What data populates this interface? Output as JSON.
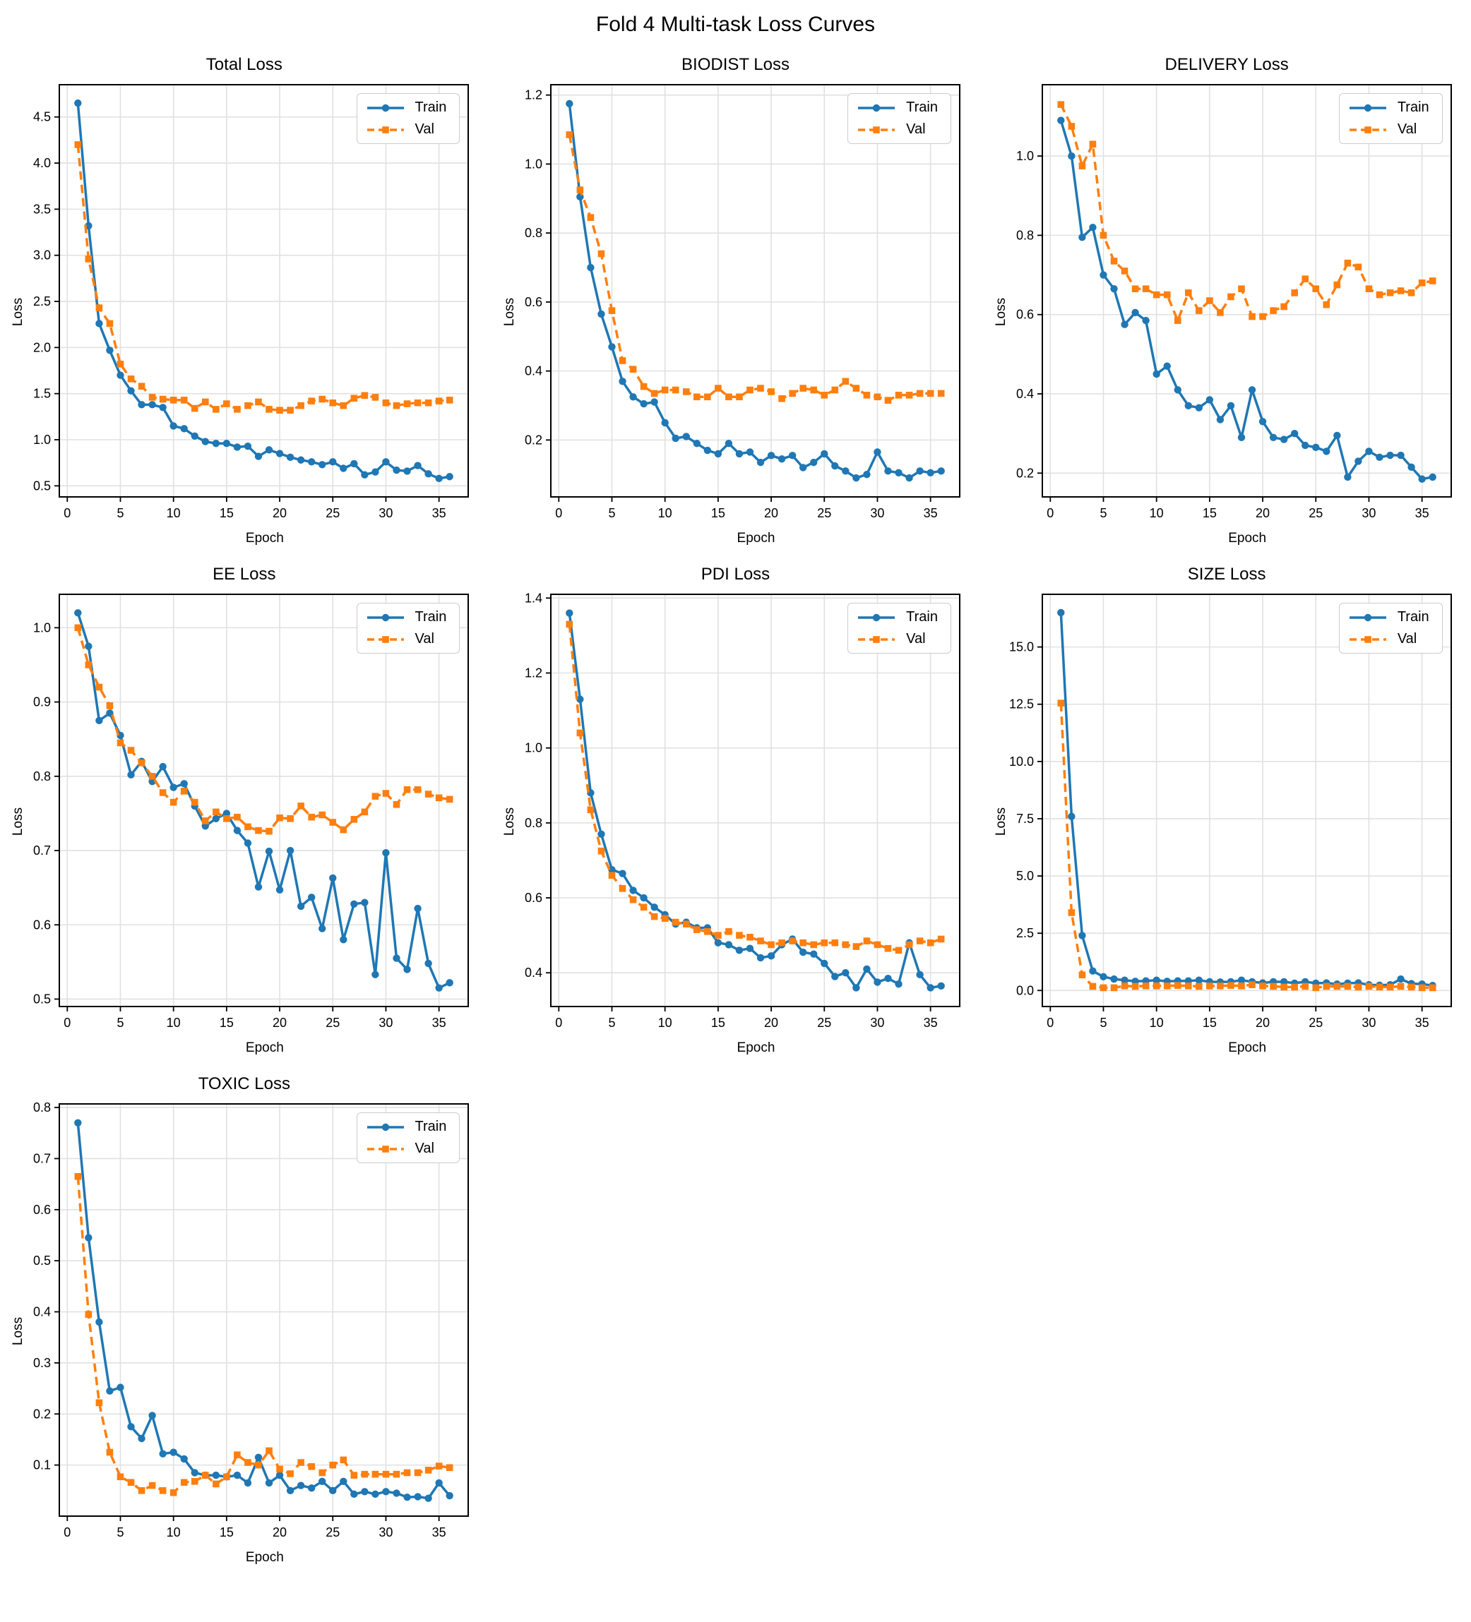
{
  "page_title": "Fold 4 Multi-task Loss Curves",
  "colors": {
    "train": "#1f77b4",
    "val": "#ff7f0e",
    "grid": "#e1e1e1",
    "spine": "#000000"
  },
  "epochs": [
    1,
    2,
    3,
    4,
    5,
    6,
    7,
    8,
    9,
    10,
    11,
    12,
    13,
    14,
    15,
    16,
    17,
    18,
    19,
    20,
    21,
    22,
    23,
    24,
    25,
    26,
    27,
    28,
    29,
    30,
    31,
    32,
    33,
    34,
    35,
    36
  ],
  "chart_data": [
    {
      "type": "line",
      "title": "Total Loss",
      "xlabel": "Epoch",
      "ylabel": "Loss",
      "xticks": [
        0,
        5,
        10,
        15,
        20,
        25,
        30,
        35
      ],
      "xlim": [
        -0.75,
        37.75
      ],
      "yticks": [
        "0.5",
        "1.0",
        "1.5",
        "2.0",
        "2.5",
        "3.0",
        "3.5",
        "4.0",
        "4.5"
      ],
      "ylim": [
        0.38,
        4.85
      ],
      "grid": true,
      "legend_position": "top-right",
      "series": [
        {
          "name": "Train",
          "color": "#1f77b4",
          "style": "solid",
          "marker": "circle",
          "values": [
            4.65,
            3.32,
            2.26,
            1.97,
            1.7,
            1.53,
            1.38,
            1.38,
            1.35,
            1.15,
            1.12,
            1.04,
            0.98,
            0.96,
            0.96,
            0.92,
            0.93,
            0.82,
            0.89,
            0.85,
            0.81,
            0.78,
            0.76,
            0.73,
            0.76,
            0.69,
            0.74,
            0.62,
            0.65,
            0.76,
            0.67,
            0.66,
            0.72,
            0.63,
            0.58,
            0.6
          ]
        },
        {
          "name": "Val",
          "color": "#ff7f0e",
          "style": "dashed",
          "marker": "square",
          "values": [
            4.2,
            2.96,
            2.43,
            2.26,
            1.82,
            1.66,
            1.58,
            1.46,
            1.44,
            1.43,
            1.43,
            1.34,
            1.41,
            1.33,
            1.39,
            1.33,
            1.37,
            1.41,
            1.33,
            1.32,
            1.32,
            1.37,
            1.42,
            1.44,
            1.4,
            1.37,
            1.45,
            1.48,
            1.46,
            1.4,
            1.37,
            1.39,
            1.4,
            1.4,
            1.42,
            1.43
          ]
        }
      ]
    },
    {
      "type": "line",
      "title": "BIODIST Loss",
      "xlabel": "Epoch",
      "ylabel": "Loss",
      "xticks": [
        0,
        5,
        10,
        15,
        20,
        25,
        30,
        35
      ],
      "xlim": [
        -0.75,
        37.75
      ],
      "yticks": [
        "0.2",
        "0.4",
        "0.6",
        "0.8",
        "1.0",
        "1.2"
      ],
      "ylim": [
        0.035,
        1.23
      ],
      "grid": true,
      "legend_position": "top-right",
      "series": [
        {
          "name": "Train",
          "color": "#1f77b4",
          "style": "solid",
          "marker": "circle",
          "values": [
            1.175,
            0.905,
            0.7,
            0.565,
            0.47,
            0.37,
            0.325,
            0.305,
            0.31,
            0.25,
            0.205,
            0.21,
            0.19,
            0.17,
            0.16,
            0.19,
            0.16,
            0.165,
            0.135,
            0.155,
            0.145,
            0.155,
            0.12,
            0.135,
            0.16,
            0.125,
            0.11,
            0.09,
            0.1,
            0.165,
            0.11,
            0.105,
            0.09,
            0.11,
            0.105,
            0.11
          ]
        },
        {
          "name": "Val",
          "color": "#ff7f0e",
          "style": "dashed",
          "marker": "square",
          "values": [
            1.085,
            0.925,
            0.845,
            0.74,
            0.575,
            0.43,
            0.405,
            0.355,
            0.335,
            0.345,
            0.345,
            0.34,
            0.325,
            0.325,
            0.35,
            0.325,
            0.325,
            0.345,
            0.35,
            0.34,
            0.32,
            0.335,
            0.35,
            0.345,
            0.33,
            0.345,
            0.37,
            0.35,
            0.33,
            0.325,
            0.315,
            0.33,
            0.33,
            0.335,
            0.335,
            0.335
          ]
        }
      ]
    },
    {
      "type": "line",
      "title": "DELIVERY Loss",
      "xlabel": "Epoch",
      "ylabel": "Loss",
      "xticks": [
        0,
        5,
        10,
        15,
        20,
        25,
        30,
        35
      ],
      "xlim": [
        -0.75,
        37.75
      ],
      "yticks": [
        "0.2",
        "0.4",
        "0.6",
        "0.8",
        "1.0"
      ],
      "ylim": [
        0.14,
        1.18
      ],
      "grid": true,
      "legend_position": "top-right",
      "series": [
        {
          "name": "Train",
          "color": "#1f77b4",
          "style": "solid",
          "marker": "circle",
          "values": [
            1.09,
            1.0,
            0.795,
            0.82,
            0.7,
            0.665,
            0.575,
            0.605,
            0.585,
            0.45,
            0.47,
            0.41,
            0.37,
            0.365,
            0.385,
            0.335,
            0.37,
            0.29,
            0.41,
            0.33,
            0.29,
            0.285,
            0.3,
            0.27,
            0.265,
            0.255,
            0.295,
            0.19,
            0.23,
            0.255,
            0.24,
            0.245,
            0.245,
            0.215,
            0.185,
            0.19
          ]
        },
        {
          "name": "Val",
          "color": "#ff7f0e",
          "style": "dashed",
          "marker": "square",
          "values": [
            1.13,
            1.075,
            0.975,
            1.03,
            0.8,
            0.735,
            0.71,
            0.665,
            0.665,
            0.65,
            0.65,
            0.585,
            0.655,
            0.61,
            0.635,
            0.605,
            0.645,
            0.665,
            0.595,
            0.595,
            0.61,
            0.62,
            0.655,
            0.69,
            0.665,
            0.625,
            0.675,
            0.73,
            0.72,
            0.665,
            0.65,
            0.655,
            0.66,
            0.655,
            0.68,
            0.685
          ]
        }
      ]
    },
    {
      "type": "line",
      "title": "EE Loss",
      "xlabel": "Epoch",
      "ylabel": "Loss",
      "xticks": [
        0,
        5,
        10,
        15,
        20,
        25,
        30,
        35
      ],
      "xlim": [
        -0.75,
        37.75
      ],
      "yticks": [
        "0.5",
        "0.6",
        "0.7",
        "0.8",
        "0.9",
        "1.0"
      ],
      "ylim": [
        0.49,
        1.045
      ],
      "grid": true,
      "legend_position": "top-right",
      "series": [
        {
          "name": "Train",
          "color": "#1f77b4",
          "style": "solid",
          "marker": "circle",
          "values": [
            1.02,
            0.975,
            0.875,
            0.885,
            0.855,
            0.802,
            0.82,
            0.793,
            0.813,
            0.785,
            0.79,
            0.76,
            0.733,
            0.743,
            0.75,
            0.727,
            0.71,
            0.651,
            0.699,
            0.647,
            0.7,
            0.625,
            0.637,
            0.595,
            0.663,
            0.58,
            0.628,
            0.63,
            0.533,
            0.697,
            0.555,
            0.54,
            0.622,
            0.548,
            0.515,
            0.522
          ]
        },
        {
          "name": "Val",
          "color": "#ff7f0e",
          "style": "dashed",
          "marker": "square",
          "values": [
            1.0,
            0.95,
            0.92,
            0.895,
            0.845,
            0.835,
            0.818,
            0.8,
            0.778,
            0.765,
            0.78,
            0.765,
            0.74,
            0.752,
            0.743,
            0.745,
            0.732,
            0.727,
            0.726,
            0.744,
            0.743,
            0.76,
            0.745,
            0.748,
            0.738,
            0.728,
            0.742,
            0.752,
            0.773,
            0.777,
            0.762,
            0.782,
            0.782,
            0.776,
            0.771,
            0.769
          ]
        }
      ]
    },
    {
      "type": "line",
      "title": "PDI Loss",
      "xlabel": "Epoch",
      "ylabel": "Loss",
      "xticks": [
        0,
        5,
        10,
        15,
        20,
        25,
        30,
        35
      ],
      "xlim": [
        -0.75,
        37.75
      ],
      "yticks": [
        "0.4",
        "0.6",
        "0.8",
        "1.0",
        "1.2",
        "1.4"
      ],
      "ylim": [
        0.31,
        1.41
      ],
      "grid": true,
      "legend_position": "top-right",
      "series": [
        {
          "name": "Train",
          "color": "#1f77b4",
          "style": "solid",
          "marker": "circle",
          "values": [
            1.36,
            1.13,
            0.88,
            0.77,
            0.675,
            0.665,
            0.62,
            0.6,
            0.575,
            0.555,
            0.53,
            0.535,
            0.52,
            0.52,
            0.48,
            0.475,
            0.46,
            0.465,
            0.44,
            0.445,
            0.475,
            0.49,
            0.455,
            0.45,
            0.425,
            0.39,
            0.4,
            0.36,
            0.41,
            0.375,
            0.385,
            0.37,
            0.48,
            0.395,
            0.36,
            0.365
          ]
        },
        {
          "name": "Val",
          "color": "#ff7f0e",
          "style": "dashed",
          "marker": "square",
          "values": [
            1.33,
            1.04,
            0.835,
            0.725,
            0.66,
            0.625,
            0.595,
            0.575,
            0.55,
            0.545,
            0.535,
            0.53,
            0.515,
            0.51,
            0.5,
            0.51,
            0.5,
            0.495,
            0.485,
            0.475,
            0.48,
            0.485,
            0.48,
            0.475,
            0.48,
            0.48,
            0.475,
            0.47,
            0.485,
            0.475,
            0.465,
            0.46,
            0.475,
            0.485,
            0.48,
            0.49
          ]
        }
      ]
    },
    {
      "type": "line",
      "title": "SIZE Loss",
      "xlabel": "Epoch",
      "ylabel": "Loss",
      "xticks": [
        0,
        5,
        10,
        15,
        20,
        25,
        30,
        35
      ],
      "xlim": [
        -0.75,
        37.75
      ],
      "yticks": [
        "0.0",
        "2.5",
        "5.0",
        "7.5",
        "10.0",
        "12.5",
        "15.0"
      ],
      "ylim": [
        -0.7,
        17.3
      ],
      "grid": true,
      "legend_position": "top-right",
      "series": [
        {
          "name": "Train",
          "color": "#1f77b4",
          "style": "solid",
          "marker": "circle",
          "values": [
            16.5,
            7.6,
            2.4,
            0.85,
            0.6,
            0.5,
            0.45,
            0.4,
            0.42,
            0.45,
            0.4,
            0.42,
            0.42,
            0.45,
            0.38,
            0.37,
            0.38,
            0.45,
            0.38,
            0.33,
            0.38,
            0.38,
            0.32,
            0.38,
            0.32,
            0.33,
            0.28,
            0.32,
            0.33,
            0.25,
            0.23,
            0.25,
            0.5,
            0.3,
            0.28,
            0.22
          ]
        },
        {
          "name": "Val",
          "color": "#ff7f0e",
          "style": "dashed",
          "marker": "square",
          "values": [
            12.55,
            3.4,
            0.68,
            0.18,
            0.12,
            0.12,
            0.2,
            0.18,
            0.2,
            0.2,
            0.2,
            0.22,
            0.2,
            0.18,
            0.2,
            0.2,
            0.22,
            0.2,
            0.25,
            0.2,
            0.18,
            0.15,
            0.15,
            0.18,
            0.12,
            0.18,
            0.18,
            0.18,
            0.15,
            0.18,
            0.15,
            0.15,
            0.18,
            0.15,
            0.12,
            0.12
          ]
        }
      ]
    },
    {
      "type": "line",
      "title": "TOXIC Loss",
      "xlabel": "Epoch",
      "ylabel": "Loss",
      "xticks": [
        0,
        5,
        10,
        15,
        20,
        25,
        30,
        35
      ],
      "xlim": [
        -0.75,
        37.75
      ],
      "yticks": [
        "0.1",
        "0.2",
        "0.3",
        "0.4",
        "0.5",
        "0.6",
        "0.7",
        "0.8"
      ],
      "ylim": [
        0.0,
        0.807
      ],
      "grid": true,
      "legend_position": "top-right",
      "series": [
        {
          "name": "Train",
          "color": "#1f77b4",
          "style": "solid",
          "marker": "circle",
          "values": [
            0.77,
            0.545,
            0.38,
            0.245,
            0.252,
            0.175,
            0.152,
            0.197,
            0.122,
            0.125,
            0.112,
            0.085,
            0.08,
            0.08,
            0.077,
            0.08,
            0.065,
            0.115,
            0.065,
            0.08,
            0.05,
            0.06,
            0.055,
            0.068,
            0.05,
            0.068,
            0.043,
            0.048,
            0.043,
            0.048,
            0.045,
            0.037,
            0.038,
            0.035,
            0.065,
            0.04
          ]
        },
        {
          "name": "Val",
          "color": "#ff7f0e",
          "style": "dashed",
          "marker": "square",
          "values": [
            0.665,
            0.395,
            0.222,
            0.125,
            0.077,
            0.066,
            0.05,
            0.06,
            0.05,
            0.046,
            0.066,
            0.068,
            0.08,
            0.063,
            0.077,
            0.12,
            0.105,
            0.1,
            0.128,
            0.092,
            0.083,
            0.105,
            0.097,
            0.085,
            0.1,
            0.11,
            0.08,
            0.082,
            0.082,
            0.082,
            0.082,
            0.085,
            0.085,
            0.09,
            0.098,
            0.095
          ]
        }
      ]
    }
  ]
}
